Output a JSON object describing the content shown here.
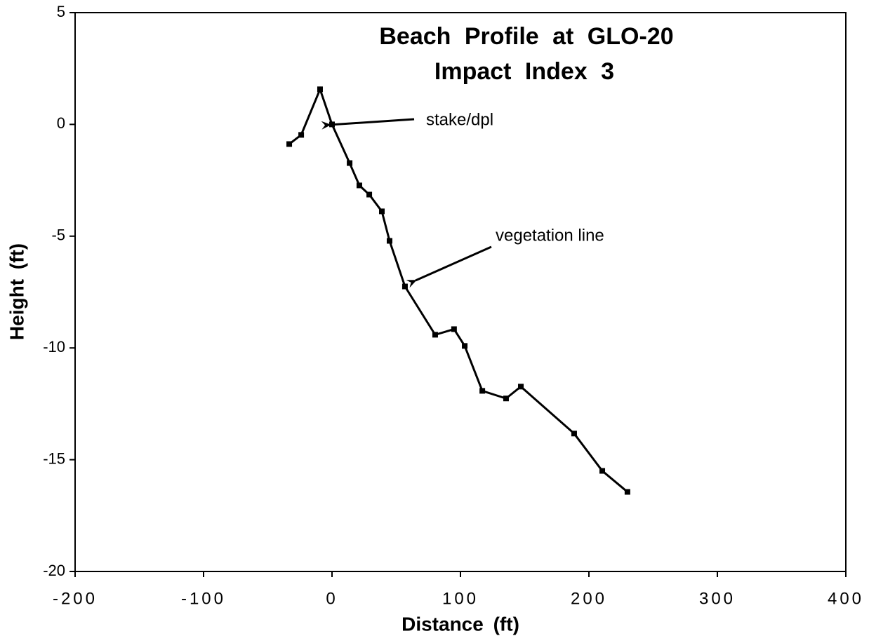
{
  "chart_data": {
    "type": "line",
    "title": [
      "Beach Profile at GLO-20",
      "Impact Index 3"
    ],
    "xlabel": "Distance (ft)",
    "ylabel": "Height (ft)",
    "annotations": [
      "stake/dpl",
      "vegetation line"
    ],
    "x": [
      -33.3,
      -24,
      -9.3,
      0,
      13.7,
      21.3,
      29,
      38.8,
      44.8,
      56.8,
      80.3,
      95,
      103.3,
      117,
      135.5,
      147,
      188.5,
      210.4,
      230
    ],
    "series": [
      {
        "color": "#000000",
        "values": [
          -0.88,
          -0.47,
          1.57,
          0,
          -1.73,
          -2.73,
          -3.14,
          -3.89,
          -5.21,
          -7.25,
          -9.41,
          -9.16,
          -9.91,
          -11.92,
          -12.26,
          -11.73,
          -13.83,
          -15.5,
          -16.44
        ]
      }
    ],
    "xlim": [
      -200,
      400
    ],
    "xticks": [
      -200,
      -100,
      0,
      100,
      200,
      300,
      400
    ],
    "ylim": [
      -20,
      5
    ],
    "yticks": [
      -20,
      -15,
      -10,
      -5,
      0,
      5
    ],
    "grid": false
  }
}
